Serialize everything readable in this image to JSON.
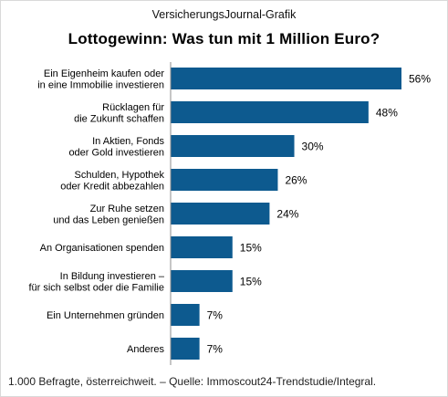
{
  "header": {
    "source": "VersicherungsJournal-Grafik",
    "title": "Lottogewinn: Was tun mit 1 Million Euro?"
  },
  "footer": {
    "note": "1.000 Befragte, österreichweit. – Quelle: Immoscout24-Trendstudie/Integral."
  },
  "chart_data": {
    "type": "bar",
    "orientation": "horizontal",
    "title": "Lottogewinn: Was tun mit 1 Million Euro?",
    "categories": [
      [
        "Ein Eigenheim kaufen oder",
        "in eine Immobilie investieren"
      ],
      [
        "Rücklagen für",
        "die Zukunft schaffen"
      ],
      [
        "In Aktien, Fonds",
        "oder Gold investieren"
      ],
      [
        "Schulden, Hypothek",
        "oder Kredit abbezahlen"
      ],
      [
        "Zur Ruhe setzen",
        "und das Leben genießen"
      ],
      [
        "An Organisationen spenden"
      ],
      [
        "In Bildung investieren –",
        "für sich selbst oder die Familie"
      ],
      [
        "Ein Unternehmen gründen"
      ],
      [
        "Anderes"
      ]
    ],
    "values": [
      56,
      48,
      30,
      26,
      24,
      15,
      15,
      7,
      7
    ],
    "value_labels": [
      "56%",
      "48%",
      "30%",
      "26%",
      "24%",
      "15%",
      "15%",
      "7%",
      "7%"
    ],
    "xlim": [
      0,
      56
    ],
    "bar_color": "#0d5a8f",
    "grid": false,
    "legend": "none"
  }
}
